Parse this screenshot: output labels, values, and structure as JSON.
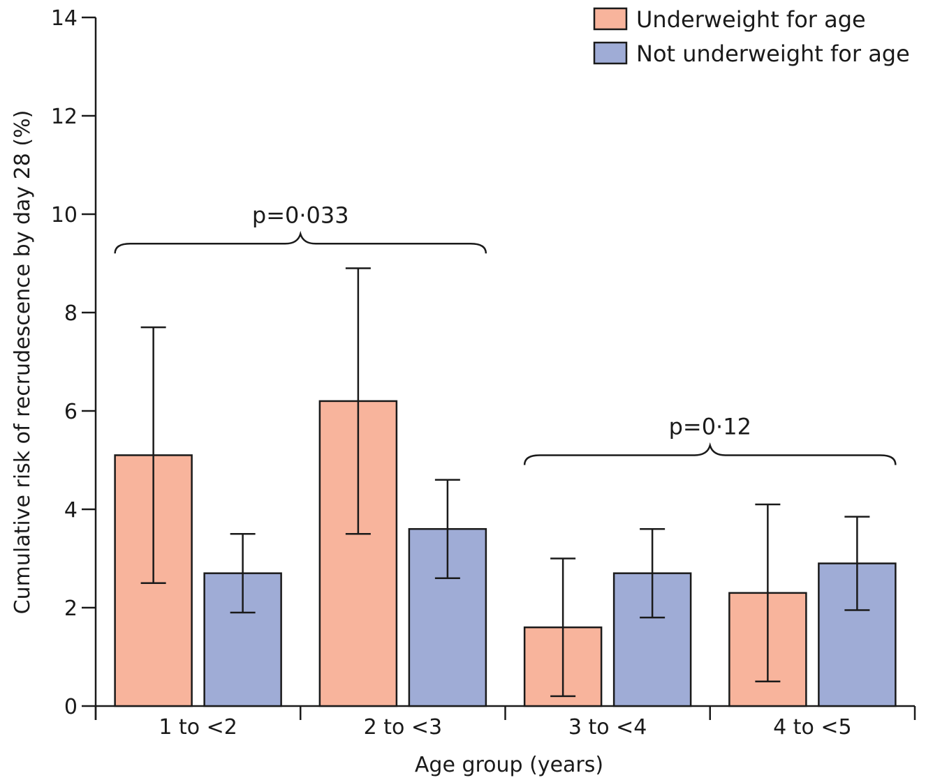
{
  "chart_data": {
    "type": "bar",
    "title": "",
    "xlabel": "Age group (years)",
    "ylabel": "Cumulative risk of recrudescence by day 28 (%)",
    "ylim": [
      0,
      14
    ],
    "yticks": [
      "0",
      "2",
      "4",
      "6",
      "8",
      "10",
      "12",
      "14"
    ],
    "categories": [
      "1 to <2",
      "2 to <3",
      "3 to <4",
      "4 to <5"
    ],
    "series": [
      {
        "name": "Underweight for age",
        "color": "#f8b49c",
        "values": [
          5.1,
          6.2,
          1.6,
          2.3
        ],
        "ci_lower": [
          2.5,
          3.5,
          0.2,
          0.5
        ],
        "ci_upper": [
          7.7,
          8.9,
          3.0,
          4.1
        ]
      },
      {
        "name": "Not underweight for age",
        "color": "#9facd6",
        "values": [
          2.7,
          3.6,
          2.7,
          2.9
        ],
        "ci_lower": [
          1.9,
          2.6,
          1.8,
          1.95
        ],
        "ci_upper": [
          3.5,
          4.6,
          3.6,
          3.85
        ]
      }
    ],
    "legend_position": "top-right",
    "grid": false,
    "annotations": [
      {
        "text": "p=0·033",
        "from_category": 0,
        "to_category": 1,
        "y": 9.4
      },
      {
        "text": "p=0·12",
        "from_category": 2,
        "to_category": 3,
        "y": 5.1
      }
    ]
  }
}
